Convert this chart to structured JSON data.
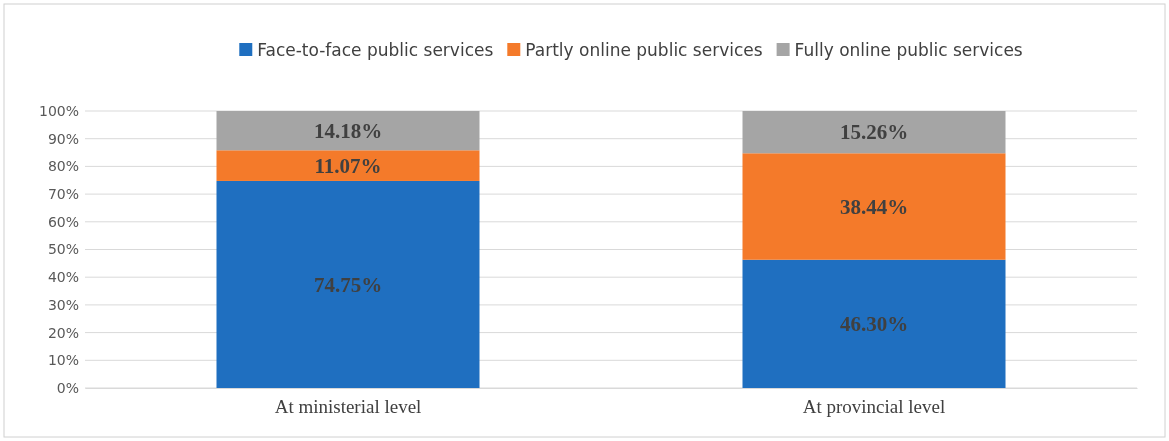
{
  "chart_data": {
    "type": "bar",
    "stacked": true,
    "categories": [
      "At ministerial level",
      "At provincial level"
    ],
    "series": [
      {
        "name": "Face-to-face public services",
        "color": "#1f6fc0",
        "values": [
          74.75,
          46.3
        ],
        "value_labels": [
          "74.75%",
          "46.30%"
        ]
      },
      {
        "name": "Partly online public services",
        "color": "#f47a2a",
        "values": [
          11.07,
          38.44
        ],
        "value_labels": [
          "11.07%",
          "38.44%"
        ]
      },
      {
        "name": "Fully online public services",
        "color": "#a5a5a5",
        "values": [
          14.18,
          15.26
        ],
        "value_labels": [
          "14.18%",
          "15.26%"
        ]
      }
    ],
    "ylim": [
      0,
      100
    ],
    "yticks": [
      {
        "value": 0,
        "label": "0%"
      },
      {
        "value": 10,
        "label": "10%"
      },
      {
        "value": 20,
        "label": "20%"
      },
      {
        "value": 30,
        "label": "30%"
      },
      {
        "value": 40,
        "label": "40%"
      },
      {
        "value": 50,
        "label": "50%"
      },
      {
        "value": 60,
        "label": "60%"
      },
      {
        "value": 70,
        "label": "70%"
      },
      {
        "value": 80,
        "label": "80%"
      },
      {
        "value": 90,
        "label": "90%"
      },
      {
        "value": 100,
        "label": "100%"
      }
    ],
    "grid": "y",
    "legend": "top"
  }
}
